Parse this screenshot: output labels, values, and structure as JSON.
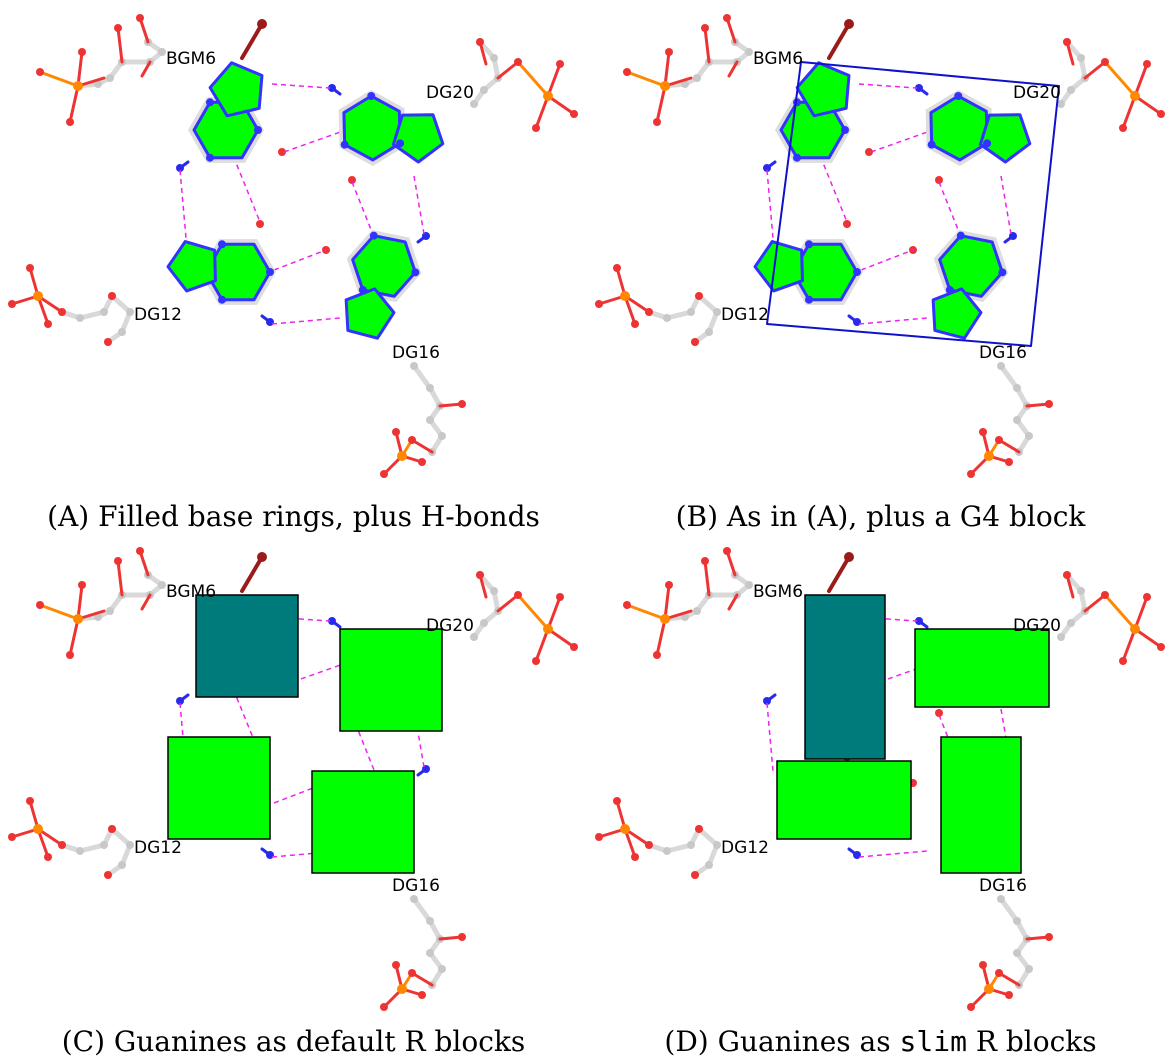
{
  "panels": [
    {
      "id": "A",
      "caption": "(A) Filled base rings, plus H-bonds",
      "g4_block": false,
      "mode": "rings"
    },
    {
      "id": "B",
      "caption": "(B) As in (A), plus a G4 block",
      "g4_block": true,
      "mode": "rings"
    },
    {
      "id": "C",
      "caption_pre": "(C) Guanines as default R blocks",
      "g4_block": false,
      "mode": "default-blocks"
    },
    {
      "id": "D",
      "caption_pre": "(D) Guanines as ",
      "caption_code": "slim",
      "caption_post": " R blocks",
      "g4_block": false,
      "mode": "slim-blocks"
    }
  ],
  "residue_labels": [
    "BGM6",
    "DG20",
    "DG12",
    "DG16"
  ],
  "colors": {
    "ring_fill": "#00ff00",
    "ring_outline": "#3333ff",
    "bgm6_block": "#007b7b",
    "hbond": "#ee22ee",
    "backbone": "#d9d9d9",
    "oxygen": "#ee3333",
    "phosphorus": "#ff8800",
    "bromine": "#9b1b1b",
    "nitrogen": "#2a2aee",
    "g4_outline": "#1111cc"
  }
}
